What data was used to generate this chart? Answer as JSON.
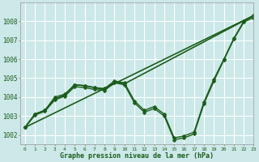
{
  "background_color": "#cce8e8",
  "grid_color": "#ffffff",
  "line_color": "#1a5c1a",
  "xlabel": "Graphe pression niveau de la mer (hPa)",
  "xlim": [
    -0.5,
    23
  ],
  "ylim": [
    1001.5,
    1009.0
  ],
  "yticks": [
    1002,
    1003,
    1004,
    1005,
    1006,
    1007,
    1008
  ],
  "xticks": [
    0,
    1,
    2,
    3,
    4,
    5,
    6,
    7,
    8,
    9,
    10,
    11,
    12,
    13,
    14,
    15,
    16,
    17,
    18,
    19,
    20,
    21,
    22,
    23
  ],
  "series": [
    {
      "x": [
        0,
        23
      ],
      "y": [
        1002.4,
        1008.3
      ],
      "marker": null,
      "markersize": 0,
      "linewidth": 1.2
    },
    {
      "x": [
        0,
        1,
        2,
        3,
        4,
        5,
        6,
        7,
        8,
        9,
        10,
        11,
        12,
        13,
        14,
        15,
        16,
        17,
        18,
        19,
        20,
        21,
        22,
        23
      ],
      "y": [
        1002.4,
        1003.1,
        1003.3,
        1004.0,
        1004.15,
        1004.65,
        1004.6,
        1004.5,
        1004.45,
        1004.85,
        1004.75,
        1003.8,
        1003.3,
        1003.5,
        1003.1,
        1001.85,
        1001.95,
        1002.15,
        1003.75,
        1004.95,
        1006.0,
        1007.1,
        1008.0,
        1008.3
      ],
      "marker": "D",
      "markersize": 2.5,
      "linewidth": 1.0
    },
    {
      "x": [
        0,
        1,
        2,
        3,
        4,
        5,
        6,
        7,
        8,
        9,
        10,
        11,
        12,
        13,
        14,
        15,
        16,
        17,
        18,
        19,
        20,
        21,
        22,
        23
      ],
      "y": [
        1002.4,
        1003.05,
        1003.25,
        1003.85,
        1004.05,
        1004.55,
        1004.5,
        1004.4,
        1004.35,
        1004.75,
        1004.65,
        1003.7,
        1003.2,
        1003.4,
        1003.0,
        1001.75,
        1001.85,
        1002.05,
        1003.65,
        1004.85,
        1005.95,
        1007.05,
        1007.95,
        1008.2
      ],
      "marker": "D",
      "markersize": 2.5,
      "linewidth": 1.0
    },
    {
      "x": [
        0,
        1,
        2,
        3,
        4,
        5,
        6,
        7,
        8,
        9,
        10,
        23
      ],
      "y": [
        1002.4,
        1003.1,
        1003.3,
        1003.9,
        1004.1,
        1004.65,
        1004.6,
        1004.5,
        1004.4,
        1004.8,
        1004.7,
        1008.3
      ],
      "marker": "D",
      "markersize": 2.5,
      "linewidth": 1.2
    }
  ]
}
